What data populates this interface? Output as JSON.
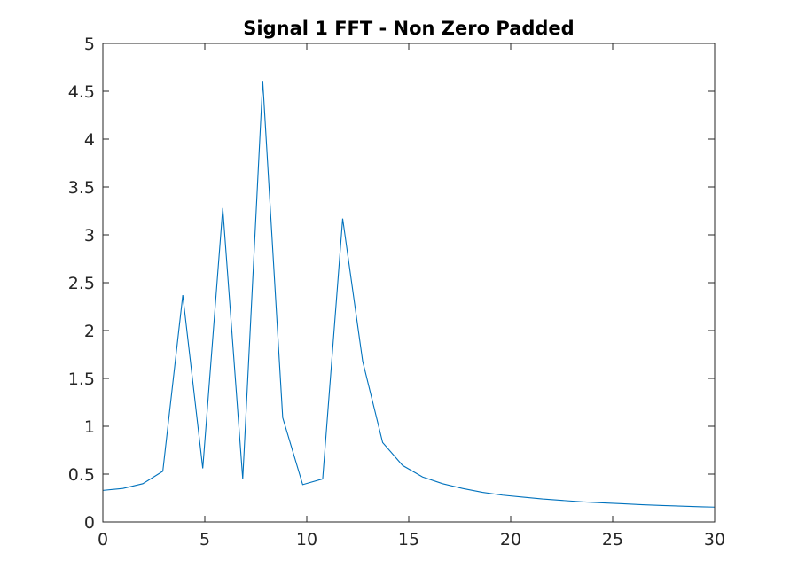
{
  "chart_data": {
    "type": "line",
    "title": "Signal 1 FFT - Non Zero Padded",
    "xlabel": "",
    "ylabel": "",
    "xlim": [
      0,
      30
    ],
    "ylim": [
      0,
      5
    ],
    "xticks": [
      0,
      5,
      10,
      15,
      20,
      25,
      30
    ],
    "xtick_labels": [
      "0",
      "5",
      "10",
      "15",
      "20",
      "25",
      "30"
    ],
    "yticks": [
      0,
      0.5,
      1,
      1.5,
      2,
      2.5,
      3,
      3.5,
      4,
      4.5,
      5
    ],
    "ytick_labels": [
      "0",
      "0.5",
      "1",
      "1.5",
      "2",
      "2.5",
      "3",
      "3.5",
      "4",
      "4.5",
      "5"
    ],
    "grid": false,
    "series": [
      {
        "color": "#0072bd",
        "x": [
          0,
          0.98,
          1.96,
          2.94,
          3.92,
          4.9,
          5.88,
          6.86,
          7.84,
          8.82,
          9.8,
          10.78,
          11.76,
          12.74,
          13.72,
          14.7,
          15.68,
          16.66,
          17.64,
          18.62,
          19.6,
          20.58,
          21.56,
          22.54,
          23.52,
          24.5,
          25.48,
          26.46,
          27.44,
          28.42,
          29.4,
          30
        ],
        "y": [
          0.33,
          0.35,
          0.4,
          0.53,
          2.37,
          0.56,
          3.28,
          0.45,
          4.61,
          1.09,
          0.39,
          0.45,
          3.17,
          1.68,
          0.83,
          0.59,
          0.47,
          0.4,
          0.35,
          0.31,
          0.28,
          0.26,
          0.24,
          0.225,
          0.21,
          0.2,
          0.19,
          0.18,
          0.172,
          0.165,
          0.158,
          0.155
        ]
      }
    ]
  }
}
